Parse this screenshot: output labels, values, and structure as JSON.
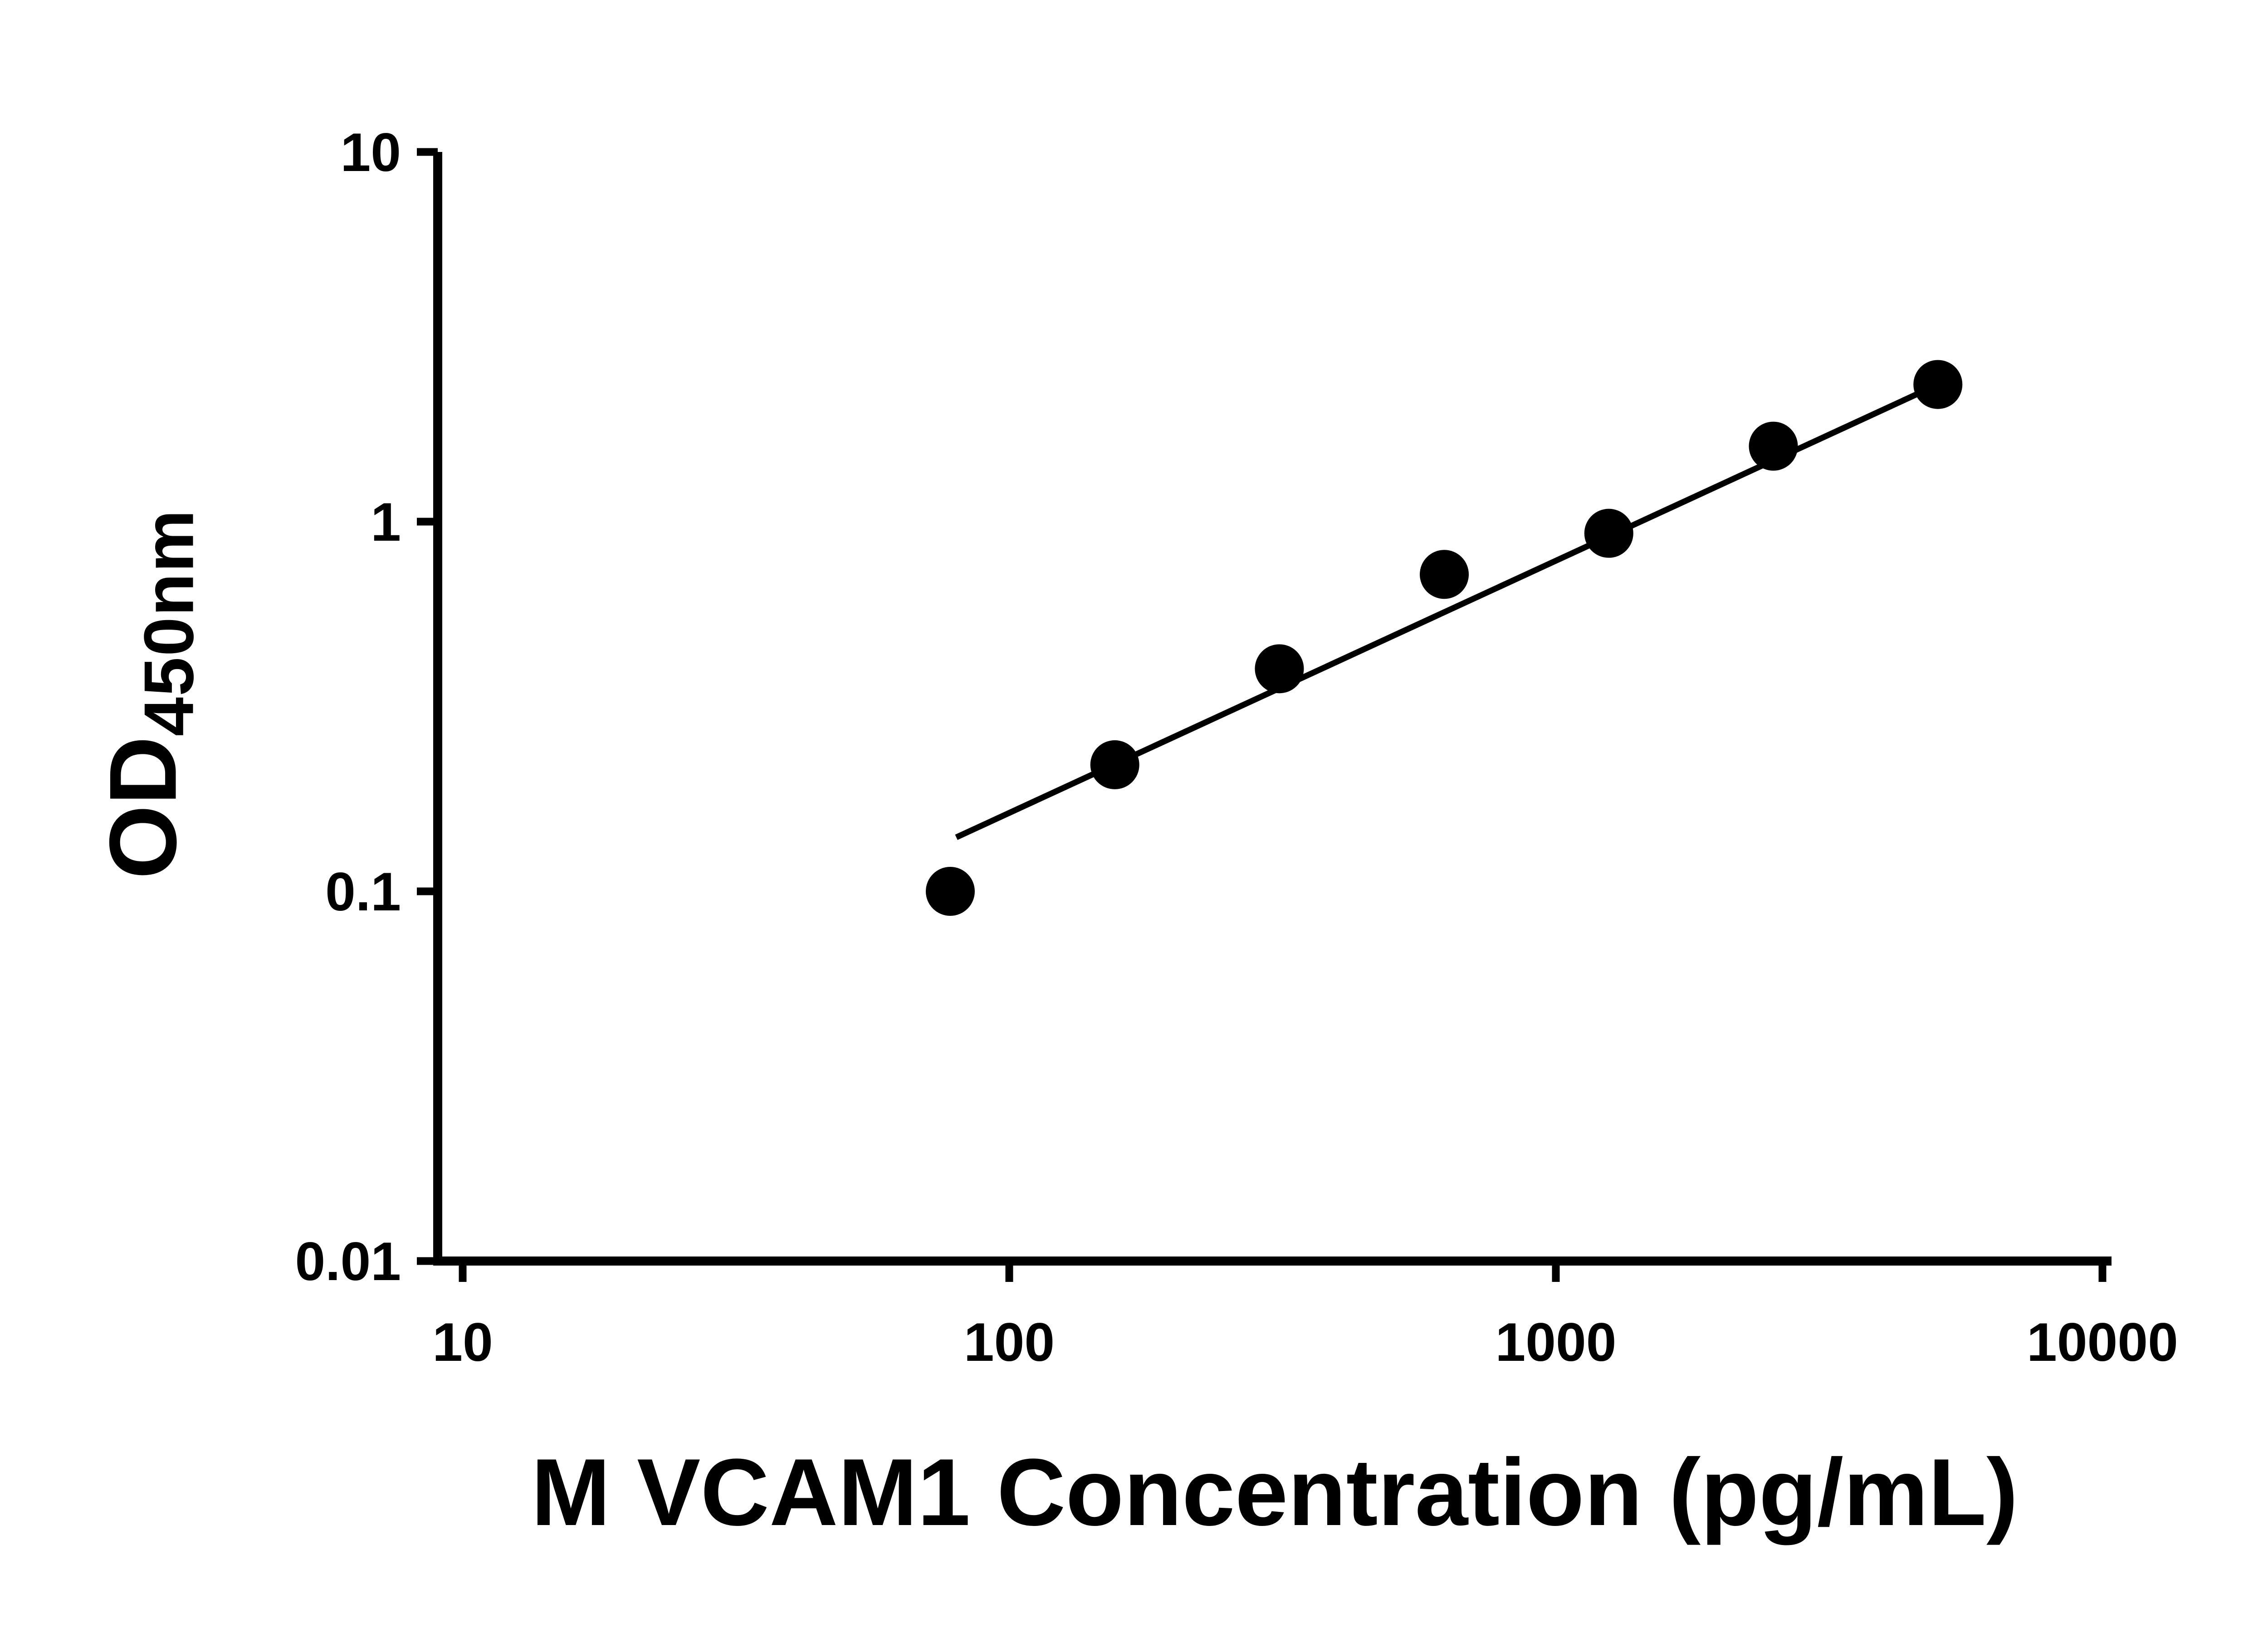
{
  "figure": {
    "background": "#ffffff"
  },
  "chart_data": {
    "type": "scatter",
    "title": "",
    "xlabel": "M VCAM1 Concentration (pg/mL)",
    "ylabel_main": "OD",
    "ylabel_sub": "450nm",
    "x_scale": "log10",
    "y_scale": "log10",
    "xlim": [
      10,
      10000
    ],
    "ylim": [
      0.01,
      10
    ],
    "x_ticks": [
      10,
      100,
      1000,
      10000
    ],
    "x_tick_labels": [
      "10",
      "100",
      "1000",
      "10000"
    ],
    "y_ticks": [
      0.01,
      0.1,
      1,
      10
    ],
    "y_tick_labels": [
      "0.01",
      "0.1",
      "1",
      "10"
    ],
    "grid": false,
    "legend": false,
    "series": [
      {
        "marker": "circle",
        "x": [
          78,
          156,
          312,
          625,
          1250,
          2500,
          5000
        ],
        "y": [
          0.1,
          0.22,
          0.4,
          0.72,
          0.93,
          1.6,
          2.35
        ]
      }
    ],
    "trend_line": {
      "x1": 80,
      "y1": 0.14,
      "x2": 5000,
      "y2": 2.35
    },
    "axis_color": "#000000",
    "marker_color": "#000000",
    "line_color": "#000000"
  }
}
